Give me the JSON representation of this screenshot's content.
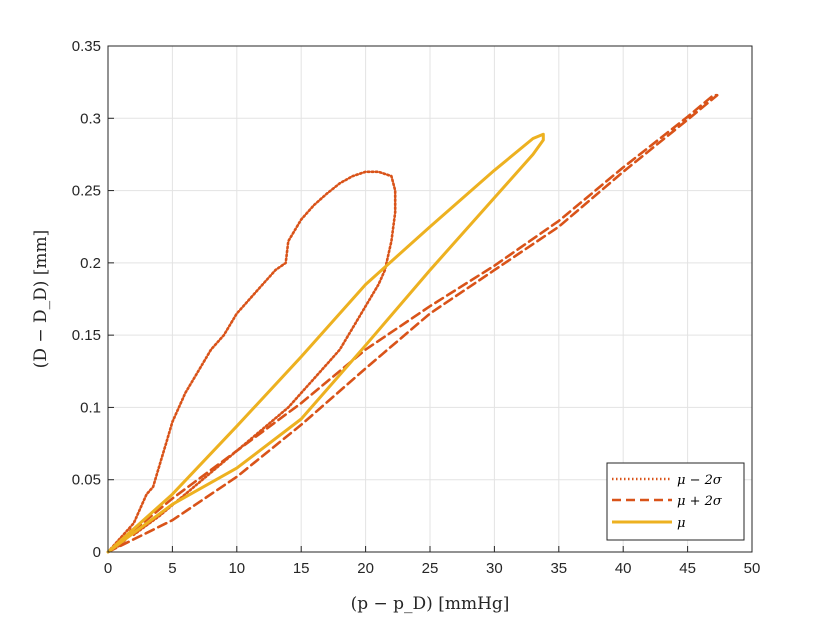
{
  "chart_data": {
    "type": "line",
    "xlabel": "(p − p_D) [mmHg]",
    "ylabel": "(D − D_D) [mm]",
    "xlim": [
      0,
      50
    ],
    "ylim": [
      0,
      0.35
    ],
    "xticks": [
      0,
      5,
      10,
      15,
      20,
      25,
      30,
      35,
      40,
      45,
      50
    ],
    "yticks": [
      0,
      0.05,
      0.1,
      0.15,
      0.2,
      0.25,
      0.3,
      0.35
    ],
    "xtick_labels": [
      "0",
      "5",
      "10",
      "15",
      "20",
      "25",
      "30",
      "35",
      "40",
      "45",
      "50"
    ],
    "ytick_labels": [
      "0",
      "0.05",
      "0.1",
      "0.15",
      "0.2",
      "0.25",
      "0.3",
      "0.35"
    ],
    "grid": true,
    "legend_position": "bottom-right",
    "series": [
      {
        "name": "μ − 2σ",
        "style": "dotted",
        "color": "#D95319",
        "x": [
          0,
          1,
          2,
          2.5,
          3,
          3.5,
          4,
          4.5,
          5,
          6,
          7,
          8,
          9,
          10,
          11,
          12,
          13,
          13.8,
          14,
          15,
          16,
          17,
          18,
          19,
          20,
          21,
          22,
          22.3,
          22.3,
          22,
          21.5,
          21,
          20,
          19,
          18,
          17,
          16,
          15,
          14,
          12,
          10,
          8,
          6,
          4,
          2,
          1.8,
          1.5,
          1,
          0
        ],
        "y": [
          0,
          0.01,
          0.02,
          0.03,
          0.04,
          0.045,
          0.06,
          0.075,
          0.09,
          0.11,
          0.125,
          0.14,
          0.15,
          0.165,
          0.175,
          0.185,
          0.195,
          0.2,
          0.215,
          0.23,
          0.24,
          0.248,
          0.255,
          0.26,
          0.263,
          0.263,
          0.26,
          0.25,
          0.235,
          0.215,
          0.195,
          0.185,
          0.17,
          0.155,
          0.14,
          0.13,
          0.12,
          0.11,
          0.1,
          0.085,
          0.07,
          0.055,
          0.04,
          0.025,
          0.012,
          0.016,
          0.01,
          0.005,
          0
        ]
      },
      {
        "name": "μ + 2σ",
        "style": "dashed",
        "color": "#D95319",
        "x": [
          0,
          5,
          10,
          15,
          20,
          25,
          30,
          35,
          40,
          45,
          47.3,
          47,
          45,
          40,
          35,
          30,
          25,
          20,
          15,
          10,
          5,
          0
        ],
        "y": [
          0,
          0.022,
          0.052,
          0.088,
          0.127,
          0.165,
          0.195,
          0.225,
          0.263,
          0.299,
          0.316,
          0.316,
          0.301,
          0.266,
          0.229,
          0.198,
          0.17,
          0.14,
          0.103,
          0.07,
          0.037,
          0
        ]
      },
      {
        "name": "μ",
        "style": "solid",
        "color": "#EDB120",
        "x": [
          0,
          5,
          10,
          15,
          20,
          25,
          26,
          30,
          33,
          33.8,
          33.8,
          33,
          30,
          25,
          20,
          15,
          10,
          5,
          0
        ],
        "y": [
          0,
          0.033,
          0.058,
          0.092,
          0.143,
          0.195,
          0.205,
          0.245,
          0.275,
          0.285,
          0.289,
          0.286,
          0.264,
          0.225,
          0.185,
          0.135,
          0.087,
          0.04,
          0
        ]
      }
    ]
  }
}
